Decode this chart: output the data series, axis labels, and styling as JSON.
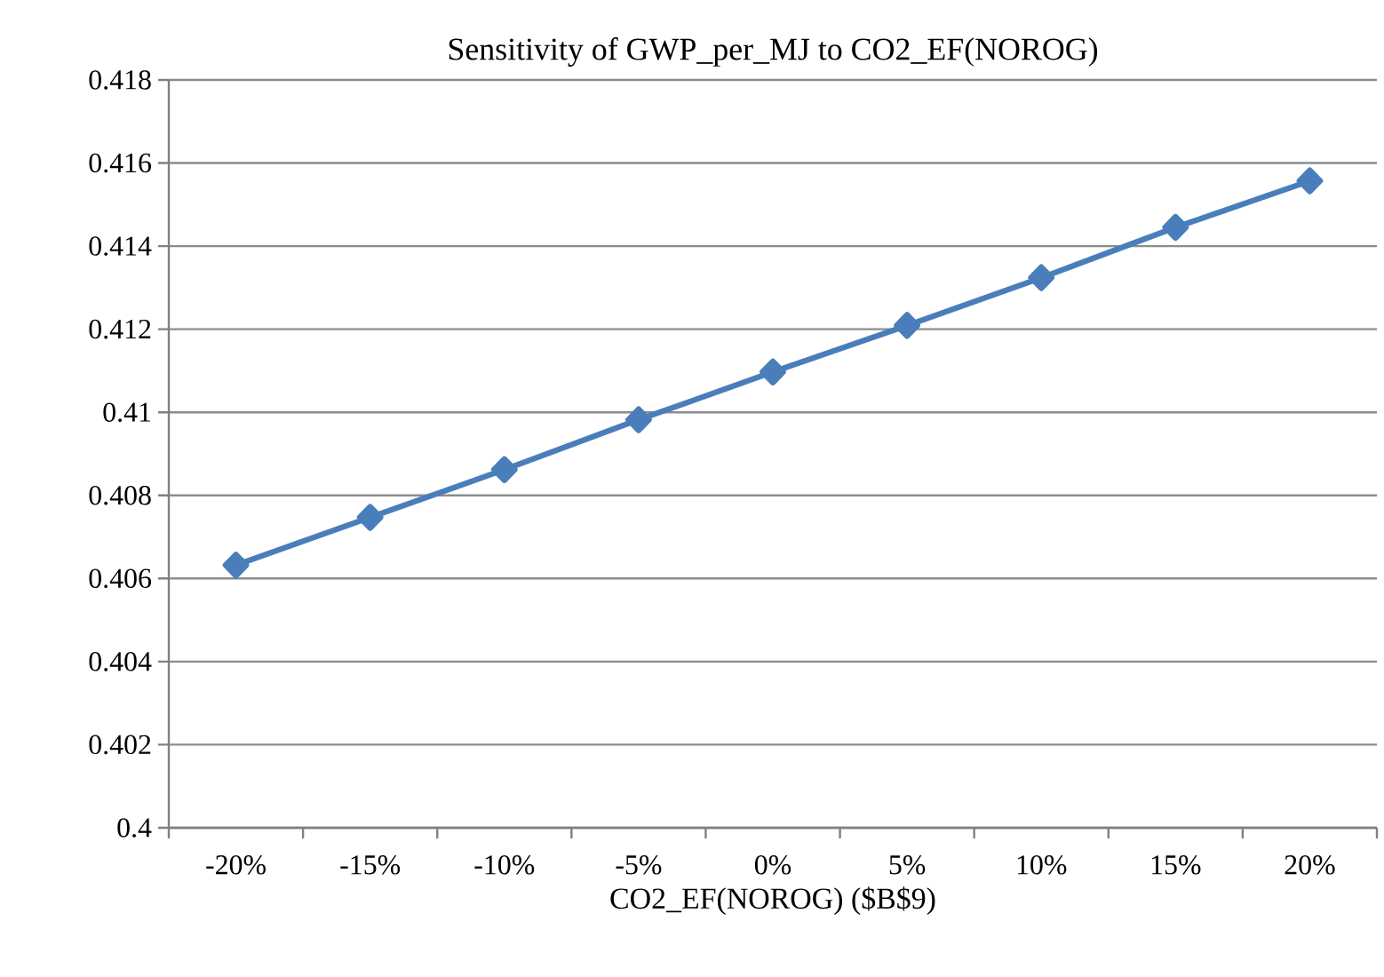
{
  "chart_data": {
    "type": "line",
    "title": "Sensitivity of GWP_per_MJ to CO2_EF(NOROG)",
    "xlabel": "CO2_EF(NOROG) ($B$9)",
    "categories": [
      "-20%",
      "-15%",
      "-10%",
      "-5%",
      "0%",
      "5%",
      "10%",
      "15%",
      "20%"
    ],
    "series": [
      {
        "color": "#4a7ebb",
        "values": [
          0.40632,
          0.40747,
          0.40862,
          0.40982,
          0.41097,
          0.41209,
          0.41324,
          0.41445,
          0.41557
        ]
      }
    ],
    "ylim": [
      0.4,
      0.418
    ],
    "yticks": [
      0.4,
      0.402,
      0.404,
      0.406,
      0.408,
      0.41,
      0.412,
      0.414,
      0.416,
      0.418
    ],
    "grid": "y",
    "marker": "diamond",
    "line_style": "solid"
  }
}
